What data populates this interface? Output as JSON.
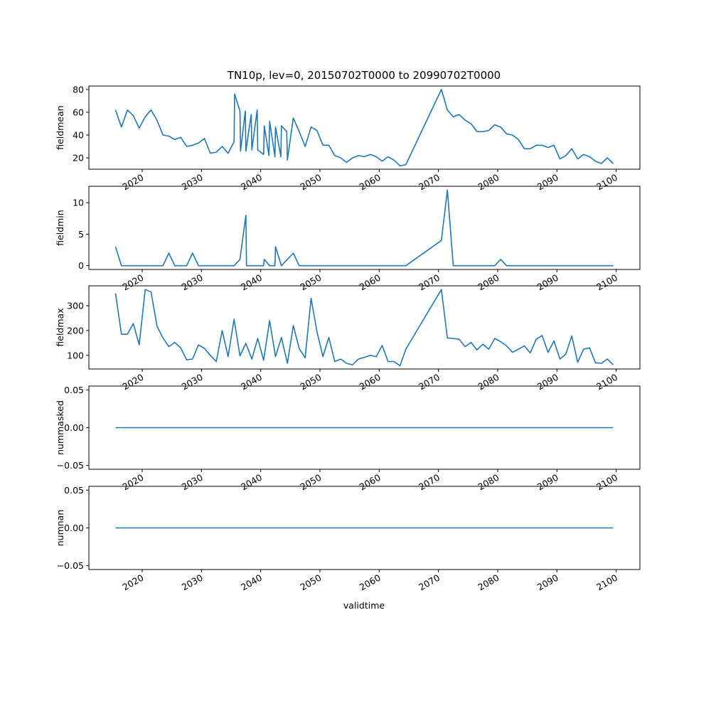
{
  "figure": {
    "title": "TN10p, lev=0, 20150702T0000 to 20990702T0000"
  },
  "chart_data": [
    {
      "type": "line",
      "title": "TN10p, lev=0, 20150702T0000 to 20990702T0000",
      "ylabel": "fieldmean",
      "xlabel": "validtime",
      "xlim": [
        2011,
        2104
      ],
      "ylim": [
        10,
        83
      ],
      "xticks": [
        2020,
        2030,
        2040,
        2050,
        2060,
        2070,
        2080,
        2090,
        2100
      ],
      "xtick_labels": [
        "2020",
        "2030",
        "2040",
        "2050",
        "2060",
        "2070",
        "2080",
        "2090",
        "2100"
      ],
      "yticks": [
        20,
        40,
        60,
        80
      ],
      "ytick_labels": [
        "20",
        "40",
        "60",
        "80"
      ],
      "series": [
        {
          "name": "fieldmean",
          "x": [
            2015.5,
            2016.5,
            2017.5,
            2018.5,
            2019.5,
            2020.5,
            2021.5,
            2022.5,
            2023.5,
            2024.5,
            2025.5,
            2026.5,
            2027.5,
            2028.5,
            2029.5,
            2030.5,
            2031.5,
            2032.5,
            2033.5,
            2034.5,
            2035.5,
            2035.6,
            2036.5,
            2036.6,
            2037.4,
            2037.5,
            2038.4,
            2038.5,
            2039.4,
            2039.5,
            2040.5,
            2040.6,
            2041.4,
            2041.5,
            2042.4,
            2042.5,
            2043.4,
            2043.5,
            2044.4,
            2044.5,
            2045.5,
            2046.5,
            2047.5,
            2048.5,
            2049.5,
            2050.5,
            2051.5,
            2052.5,
            2053.5,
            2054.5,
            2055.5,
            2056.5,
            2057.5,
            2058.5,
            2059.5,
            2060.5,
            2061.5,
            2062.5,
            2063.5,
            2064.5,
            2070.5,
            2071.5,
            2072.5,
            2073.5,
            2074.5,
            2075.5,
            2076.5,
            2077.5,
            2078.5,
            2079.5,
            2080.5,
            2081.5,
            2082.5,
            2083.5,
            2084.5,
            2085.5,
            2086.5,
            2087.5,
            2088.5,
            2089.5,
            2090.5,
            2091.5,
            2092.5,
            2093.5,
            2094.5,
            2095.5,
            2096.5,
            2097.5,
            2098.5,
            2099.5
          ],
          "values": [
            62,
            47,
            62,
            57,
            46,
            56,
            62,
            53,
            40,
            39,
            36,
            38,
            30,
            31,
            33,
            37,
            24,
            25,
            30,
            24,
            34,
            76,
            61,
            26,
            61,
            26,
            58,
            27,
            62,
            27,
            23,
            48,
            22,
            52,
            21,
            47,
            21,
            48,
            43,
            18,
            55,
            43,
            30,
            47,
            44,
            31,
            31,
            22,
            20,
            16,
            20,
            22,
            21,
            23,
            21,
            17,
            21,
            18,
            13,
            14,
            80,
            62,
            56,
            58,
            53,
            50,
            43,
            43,
            44,
            49,
            47,
            41,
            40,
            36,
            28,
            28,
            31,
            31,
            29,
            31,
            19,
            22,
            28,
            19,
            23,
            21,
            17,
            15,
            20,
            15
          ]
        }
      ]
    },
    {
      "type": "line",
      "ylabel": "fieldmin",
      "xlabel": "validtime",
      "xlim": [
        2011,
        2104
      ],
      "ylim": [
        -0.6,
        12.6
      ],
      "xticks": [
        2020,
        2030,
        2040,
        2050,
        2060,
        2070,
        2080,
        2090,
        2100
      ],
      "xtick_labels": [
        "2020",
        "2030",
        "2040",
        "2050",
        "2060",
        "2070",
        "2080",
        "2090",
        "2100"
      ],
      "yticks": [
        0,
        5,
        10
      ],
      "ytick_labels": [
        "0",
        "5",
        "10"
      ],
      "series": [
        {
          "name": "fieldmin",
          "x": [
            2015.5,
            2016.5,
            2023.5,
            2024.5,
            2025.5,
            2027.5,
            2028.5,
            2029.5,
            2035.5,
            2036.5,
            2037.5,
            2037.6,
            2040.5,
            2040.6,
            2041.5,
            2042.4,
            2042.5,
            2043.5,
            2044.5,
            2045.5,
            2046.5,
            2064.5,
            2070.5,
            2071.5,
            2072.5,
            2079.5,
            2080.5,
            2081.5,
            2099.5
          ],
          "values": [
            3,
            0,
            0,
            2,
            0,
            0,
            2,
            0,
            0,
            1,
            8,
            0,
            0,
            1,
            0,
            0,
            3,
            0,
            1,
            2,
            0,
            0,
            4,
            12,
            0,
            0,
            1,
            0,
            0
          ]
        }
      ]
    },
    {
      "type": "line",
      "ylabel": "fieldmax",
      "xlabel": "validtime",
      "xlim": [
        2011,
        2104
      ],
      "ylim": [
        45,
        380
      ],
      "xticks": [
        2020,
        2030,
        2040,
        2050,
        2060,
        2070,
        2080,
        2090,
        2100
      ],
      "xtick_labels": [
        "2020",
        "2030",
        "2040",
        "2050",
        "2060",
        "2070",
        "2080",
        "2090",
        "2100"
      ],
      "yticks": [
        100,
        200,
        300
      ],
      "ytick_labels": [
        "100",
        "200",
        "300"
      ],
      "series": [
        {
          "name": "fieldmax",
          "x": [
            2015.5,
            2016.5,
            2017.5,
            2018.5,
            2019.5,
            2020.5,
            2021.5,
            2022.5,
            2023.5,
            2024.5,
            2025.5,
            2026.5,
            2027.5,
            2028.5,
            2029.5,
            2030.5,
            2031.5,
            2032.5,
            2033.5,
            2034.5,
            2035.5,
            2036.5,
            2037.5,
            2038.5,
            2039.5,
            2040.5,
            2041.5,
            2042.5,
            2043.5,
            2044.5,
            2045.5,
            2046.5,
            2047.5,
            2048.5,
            2049.5,
            2050.5,
            2051.5,
            2052.5,
            2053.5,
            2054.5,
            2055.5,
            2056.5,
            2057.5,
            2058.5,
            2059.5,
            2060.5,
            2061.5,
            2062.5,
            2063.5,
            2064.5,
            2070.5,
            2071.5,
            2072.5,
            2073.5,
            2074.5,
            2075.5,
            2076.5,
            2077.5,
            2078.5,
            2079.5,
            2080.5,
            2081.5,
            2082.5,
            2083.5,
            2084.5,
            2085.5,
            2086.5,
            2087.5,
            2088.5,
            2089.5,
            2090.5,
            2091.5,
            2092.5,
            2093.5,
            2094.5,
            2095.5,
            2096.5,
            2097.5,
            2098.5,
            2099.5
          ],
          "values": [
            350,
            185,
            185,
            228,
            143,
            365,
            355,
            218,
            170,
            135,
            152,
            130,
            82,
            85,
            142,
            128,
            100,
            75,
            200,
            95,
            245,
            98,
            148,
            85,
            168,
            80,
            240,
            95,
            172,
            68,
            220,
            128,
            90,
            330,
            195,
            95,
            172,
            75,
            85,
            68,
            62,
            85,
            92,
            100,
            95,
            140,
            75,
            75,
            58,
            125,
            365,
            170,
            168,
            165,
            135,
            152,
            122,
            145,
            125,
            168,
            155,
            138,
            112,
            125,
            138,
            110,
            165,
            180,
            112,
            158,
            85,
            105,
            178,
            72,
            125,
            130,
            70,
            68,
            85,
            62
          ]
        }
      ]
    },
    {
      "type": "line",
      "ylabel": "nummasked",
      "xlabel": "validtime",
      "xlim": [
        2011,
        2104
      ],
      "ylim": [
        -0.055,
        0.055
      ],
      "xticks": [
        2020,
        2030,
        2040,
        2050,
        2060,
        2070,
        2080,
        2090,
        2100
      ],
      "xtick_labels": [
        "2020",
        "2030",
        "2040",
        "2050",
        "2060",
        "2070",
        "2080",
        "2090",
        "2100"
      ],
      "yticks": [
        -0.05,
        0,
        0.05
      ],
      "ytick_labels": [
        "−0.05",
        "0.00",
        "0.05"
      ],
      "series": [
        {
          "name": "nummasked",
          "x": [
            2015.5,
            2099.5
          ],
          "values": [
            0,
            0
          ]
        }
      ]
    },
    {
      "type": "line",
      "ylabel": "numnan",
      "xlabel": "validtime",
      "xlim": [
        2011,
        2104
      ],
      "ylim": [
        -0.055,
        0.055
      ],
      "xticks": [
        2020,
        2030,
        2040,
        2050,
        2060,
        2070,
        2080,
        2090,
        2100
      ],
      "xtick_labels": [
        "2020",
        "2030",
        "2040",
        "2050",
        "2060",
        "2070",
        "2080",
        "2090",
        "2100"
      ],
      "yticks": [
        -0.05,
        0,
        0.05
      ],
      "ytick_labels": [
        "−0.05",
        "0.00",
        "0.05"
      ],
      "series": [
        {
          "name": "numnan",
          "x": [
            2015.5,
            2099.5
          ],
          "values": [
            0,
            0
          ]
        }
      ]
    }
  ]
}
